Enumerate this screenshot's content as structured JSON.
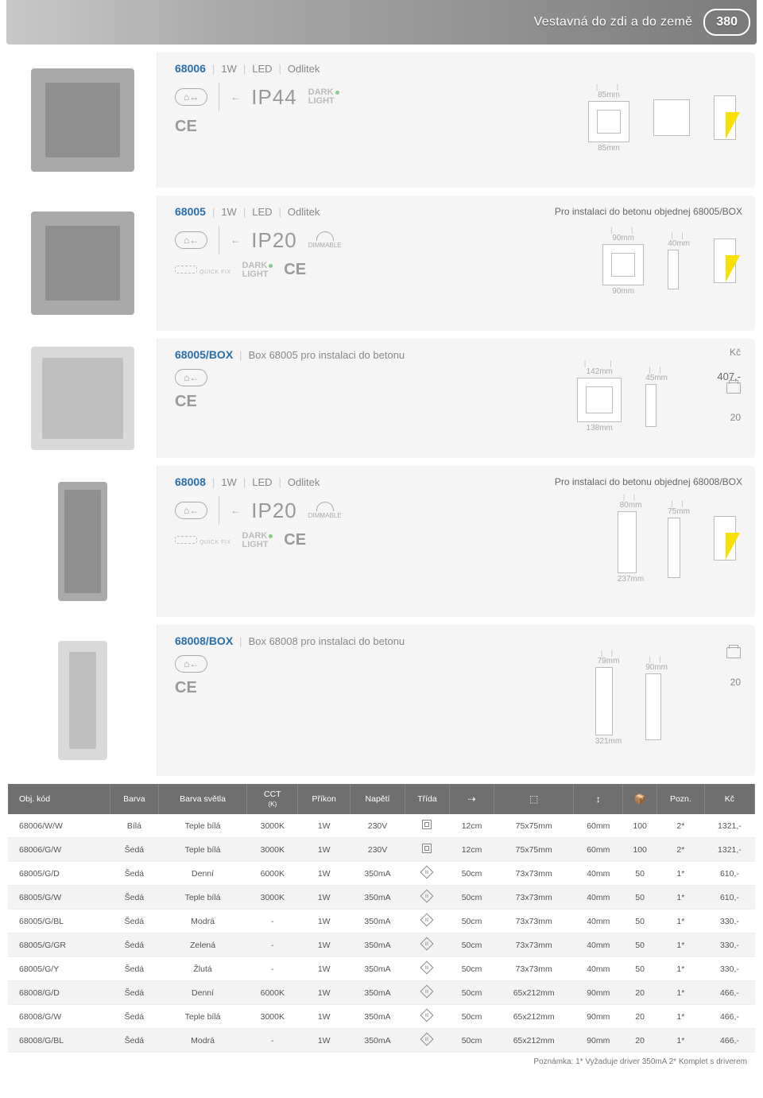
{
  "header": {
    "title": "Vestavná do zdi a do země",
    "page_number": "380"
  },
  "products": [
    {
      "code": "68006",
      "tags": [
        "1W",
        "LED",
        "Odlitek"
      ],
      "ip": "IP44",
      "dark_light": true,
      "ce": true,
      "dims": {
        "w": "85mm",
        "h": "85mm"
      },
      "beam": true
    },
    {
      "code": "68005",
      "tags": [
        "1W",
        "LED",
        "Odlitek"
      ],
      "note_right": "Pro instalaci do betonu objednej 68005/BOX",
      "ip": "IP20",
      "dimmable": true,
      "quickfix": true,
      "dark_light": true,
      "ce": true,
      "dims": {
        "w": "90mm",
        "h": "90mm",
        "d": "40mm"
      },
      "beam": true
    },
    {
      "code": "68005/BOX",
      "tags": [
        "Box 68005 pro instalaci do betonu"
      ],
      "ce": true,
      "kc_label": "Kč",
      "price": "407,-",
      "qty": "20",
      "dims": {
        "w": "142mm",
        "h": "138mm",
        "d": "45mm"
      }
    },
    {
      "code": "68008",
      "tags": [
        "1W",
        "LED",
        "Odlitek"
      ],
      "note_right": "Pro instalaci do betonu objednej 68008/BOX",
      "ip": "IP20",
      "dimmable": true,
      "quickfix": true,
      "dark_light": true,
      "ce": true,
      "dims": {
        "w": "80mm",
        "h": "237mm",
        "d": "75mm"
      },
      "beam": true
    },
    {
      "code": "68008/BOX",
      "tags": [
        "Box 68008 pro instalaci do betonu"
      ],
      "ce": true,
      "qty": "20",
      "dims": {
        "w": "79mm",
        "h": "321mm",
        "d": "90mm"
      }
    }
  ],
  "table": {
    "columns": [
      "Obj. kód",
      "Barva",
      "Barva světla",
      "CCT (K)",
      "Příkon",
      "Napětí",
      "Třída",
      "chain-icon",
      "dim-icon",
      "height-icon",
      "box-icon",
      "Pozn.",
      "Kč"
    ],
    "rows": [
      [
        "68006/W/W",
        "Bílá",
        "Teple bílá",
        "3000K",
        "1W",
        "230V",
        "sq",
        "12cm",
        "75x75mm",
        "60mm",
        "100",
        "2*",
        "1321,-"
      ],
      [
        "68006/G/W",
        "Šedá",
        "Teple bílá",
        "3000K",
        "1W",
        "230V",
        "sq",
        "12cm",
        "75x75mm",
        "60mm",
        "100",
        "2*",
        "1321,-"
      ],
      [
        "68005/G/D",
        "Šedá",
        "Denní",
        "6000K",
        "1W",
        "350mA",
        "di",
        "50cm",
        "73x73mm",
        "40mm",
        "50",
        "1*",
        "610,-"
      ],
      [
        "68005/G/W",
        "Šedá",
        "Teple bílá",
        "3000K",
        "1W",
        "350mA",
        "di",
        "50cm",
        "73x73mm",
        "40mm",
        "50",
        "1*",
        "610,-"
      ],
      [
        "68005/G/BL",
        "Šedá",
        "Modrá",
        "-",
        "1W",
        "350mA",
        "di",
        "50cm",
        "73x73mm",
        "40mm",
        "50",
        "1*",
        "330,-"
      ],
      [
        "68005/G/GR",
        "Šedá",
        "Zelená",
        "-",
        "1W",
        "350mA",
        "di",
        "50cm",
        "73x73mm",
        "40mm",
        "50",
        "1*",
        "330,-"
      ],
      [
        "68005/G/Y",
        "Šedá",
        "Žlutá",
        "-",
        "1W",
        "350mA",
        "di",
        "50cm",
        "73x73mm",
        "40mm",
        "50",
        "1*",
        "330,-"
      ],
      [
        "68008/G/D",
        "Šedá",
        "Denní",
        "6000K",
        "1W",
        "350mA",
        "di",
        "50cm",
        "65x212mm",
        "90mm",
        "20",
        "1*",
        "466,-"
      ],
      [
        "68008/G/W",
        "Šedá",
        "Teple bílá",
        "3000K",
        "1W",
        "350mA",
        "di",
        "50cm",
        "65x212mm",
        "90mm",
        "20",
        "1*",
        "466,-"
      ],
      [
        "68008/G/BL",
        "Šedá",
        "Modrá",
        "-",
        "1W",
        "350mA",
        "di",
        "50cm",
        "65x212mm",
        "90mm",
        "20",
        "1*",
        "466,-"
      ]
    ]
  },
  "footnote": "Poznámka: 1* Vyžaduje driver 350mA  2* Komplet s driverem",
  "labels": {
    "dark": "DARK",
    "light": "LIGHT",
    "dimmable": "DIMMABLE",
    "quickfix": "QUICK FIX"
  }
}
